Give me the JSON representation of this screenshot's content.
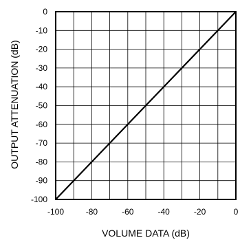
{
  "chart_data": {
    "type": "line",
    "title": "",
    "xlabel": "VOLUME DATA (dB)",
    "ylabel": "OUTPUT ATTENUATION (dB)",
    "xlim": [
      -100,
      0
    ],
    "ylim": [
      -100,
      0
    ],
    "x_ticks": [
      -100,
      -80,
      -60,
      -40,
      -20,
      0
    ],
    "x_tick_labels": [
      "-100",
      "-80",
      "-60",
      "-40",
      "-20",
      "0"
    ],
    "x_grid": [
      -100,
      -90,
      -80,
      -70,
      -60,
      -50,
      -40,
      -30,
      -20,
      -10,
      0
    ],
    "y_ticks": [
      0,
      -10,
      -20,
      -30,
      -40,
      -50,
      -60,
      -70,
      -80,
      -90,
      -100
    ],
    "y_tick_labels": [
      "0",
      "-10",
      "-20",
      "-30",
      "-40",
      "-50",
      "-60",
      "-70",
      "-80",
      "-90",
      "-100"
    ],
    "grid": true,
    "series": [
      {
        "x": [
          -100,
          0
        ],
        "y": [
          -100,
          0
        ]
      }
    ],
    "colors": {
      "line": "#000000",
      "grid": "#000000",
      "frame": "#000000"
    }
  }
}
